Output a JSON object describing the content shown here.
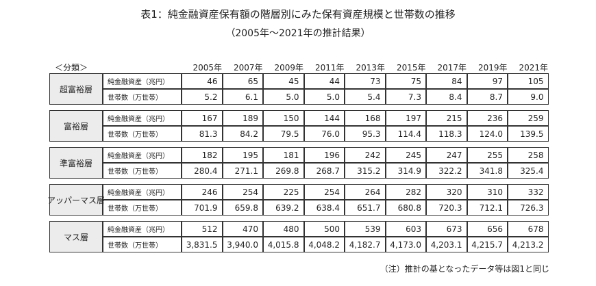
{
  "header": {
    "title": "表1：純金融資産保有額の階層別にみた保有資産規模と世帯数の推移",
    "subtitle": "（2005年～2021年の推計結果）"
  },
  "table": {
    "corner": "＜分類＞",
    "years": [
      "2005年",
      "2007年",
      "2009年",
      "2011年",
      "2013年",
      "2015年",
      "2017年",
      "2019年",
      "2021年"
    ],
    "groups": [
      {
        "name": "超富裕層",
        "rows": [
          {
            "label": "純金融資産（兆円）",
            "values": [
              "46",
              "65",
              "45",
              "44",
              "73",
              "75",
              "84",
              "97",
              "105"
            ]
          },
          {
            "label": "世帯数（万世帯）",
            "values": [
              "5.2",
              "6.1",
              "5.0",
              "5.0",
              "5.4",
              "7.3",
              "8.4",
              "8.7",
              "9.0"
            ]
          }
        ]
      },
      {
        "name": "富裕層",
        "rows": [
          {
            "label": "純金融資産（兆円）",
            "values": [
              "167",
              "189",
              "150",
              "144",
              "168",
              "197",
              "215",
              "236",
              "259"
            ]
          },
          {
            "label": "世帯数（万世帯）",
            "values": [
              "81.3",
              "84.2",
              "79.5",
              "76.0",
              "95.3",
              "114.4",
              "118.3",
              "124.0",
              "139.5"
            ]
          }
        ]
      },
      {
        "name": "準富裕層",
        "rows": [
          {
            "label": "純金融資産（兆円）",
            "values": [
              "182",
              "195",
              "181",
              "196",
              "242",
              "245",
              "247",
              "255",
              "258"
            ]
          },
          {
            "label": "世帯数（万世帯）",
            "values": [
              "280.4",
              "271.1",
              "269.8",
              "268.7",
              "315.2",
              "314.9",
              "322.2",
              "341.8",
              "325.4"
            ]
          }
        ]
      },
      {
        "name": "アッパーマス層",
        "rows": [
          {
            "label": "純金融資産（兆円）",
            "values": [
              "246",
              "254",
              "225",
              "254",
              "264",
              "282",
              "320",
              "310",
              "332"
            ]
          },
          {
            "label": "世帯数（万世帯）",
            "values": [
              "701.9",
              "659.8",
              "639.2",
              "638.4",
              "651.7",
              "680.8",
              "720.3",
              "712.1",
              "726.3"
            ]
          }
        ]
      },
      {
        "name": "マス層",
        "rows": [
          {
            "label": "純金融資産（兆円）",
            "values": [
              "512",
              "470",
              "480",
              "500",
              "539",
              "603",
              "673",
              "656",
              "678"
            ]
          },
          {
            "label": "世帯数（万世帯）",
            "values": [
              "3,831.5",
              "3,940.0",
              "4,015.8",
              "4,048.2",
              "4,182.7",
              "4,173.0",
              "4,203.1",
              "4,215.7",
              "4,213.2"
            ]
          }
        ]
      }
    ]
  },
  "note": "（注）推計の基となったデータ等は図1と同じ"
}
